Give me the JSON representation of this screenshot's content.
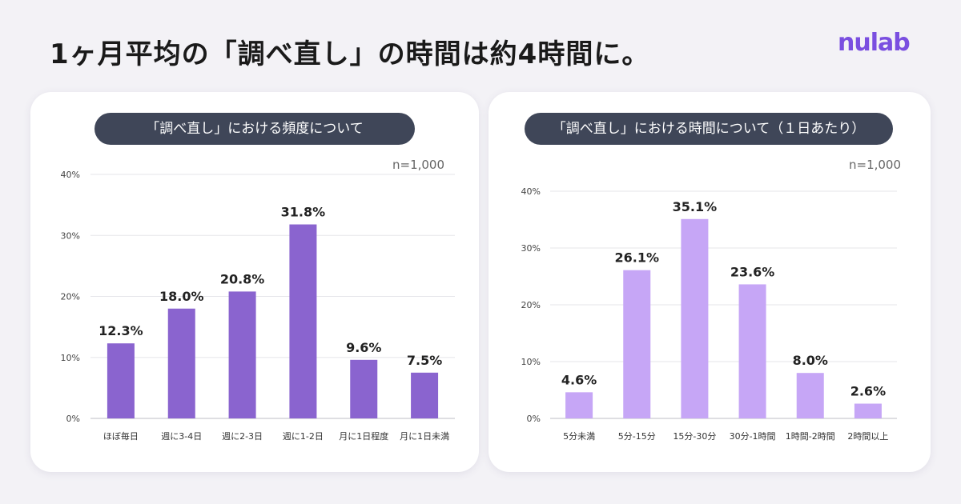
{
  "page_title": "1ヶ月平均の「調べ直し」の時間は約4時間に。",
  "logo": "nulab",
  "colors": {
    "left_bar": "#8a64cf",
    "right_bar": "#c6a6f6",
    "pill": "#3f4658",
    "grid": "#e6e6ea",
    "axis": "#bdbdc4"
  },
  "chart_data": [
    {
      "type": "bar",
      "title": "「調べ直し」における頻度について",
      "n_label": "n=1,000",
      "categories": [
        "ほぼ毎日",
        "週に3-4日",
        "週に2-3日",
        "週に1-2日",
        "月に1日程度",
        "月に1日未満"
      ],
      "values": [
        12.3,
        18.0,
        20.8,
        31.8,
        9.6,
        7.5
      ],
      "data_labels": [
        "12.3%",
        "18.0%",
        "20.8%",
        "31.8%",
        "9.6%",
        "7.5%"
      ],
      "ylim": [
        0,
        40
      ],
      "y_ticks": [
        "0%",
        "10%",
        "20%",
        "30%",
        "40%"
      ],
      "grid": true,
      "xlabel": "",
      "ylabel": ""
    },
    {
      "type": "bar",
      "title": "「調べ直し」における時間について（１日あたり）",
      "n_label": "n=1,000",
      "categories": [
        "5分未満",
        "5分-15分",
        "15分-30分",
        "30分-1時間",
        "1時間-2時間",
        "2時間以上"
      ],
      "values": [
        4.6,
        26.1,
        35.1,
        23.6,
        8.0,
        2.6
      ],
      "data_labels": [
        "4.6%",
        "26.1%",
        "35.1%",
        "23.6%",
        "8.0%",
        "2.6%"
      ],
      "ylim": [
        0,
        40
      ],
      "y_ticks": [
        "0%",
        "10%",
        "20%",
        "30%",
        "40%"
      ],
      "grid": true,
      "xlabel": "",
      "ylabel": ""
    }
  ]
}
